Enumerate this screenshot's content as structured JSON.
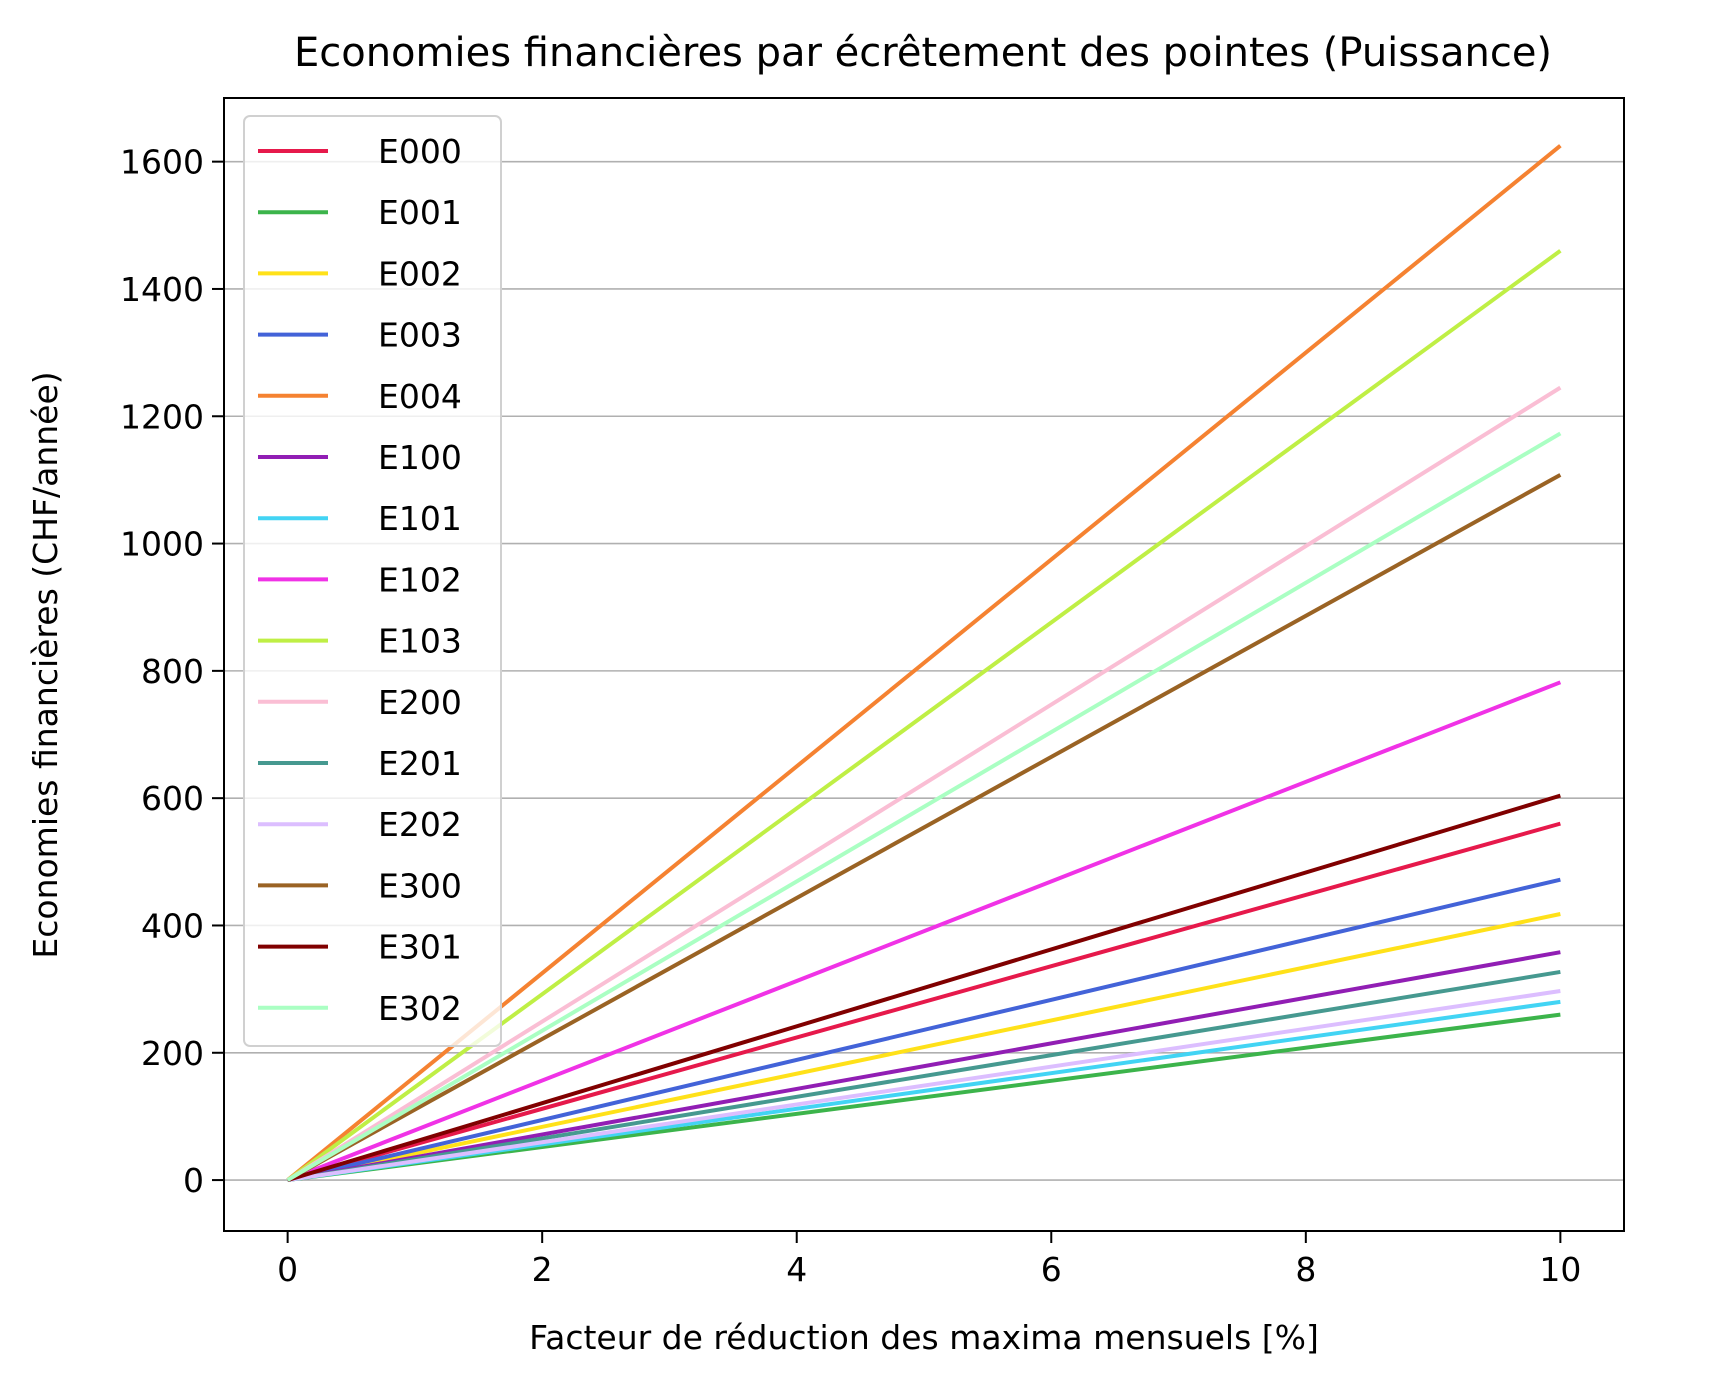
{
  "chart_data": {
    "type": "line",
    "title": "Economies financières par écrêtement des pointes (Puissance)",
    "xlabel": "Facteur de réduction des maxima mensuels [%]",
    "ylabel": "Economies financières (CHF/année)",
    "xlim": [
      -0.5,
      10.5
    ],
    "ylim": [
      -80,
      1700
    ],
    "xticks": [
      0,
      2,
      4,
      6,
      8,
      10
    ],
    "xtick_labels": [
      "0",
      "2",
      "4",
      "6",
      "8",
      "10"
    ],
    "yticks": [
      0,
      200,
      400,
      600,
      800,
      1000,
      1200,
      1400,
      1600
    ],
    "ytick_labels": [
      "0",
      "200",
      "400",
      "600",
      "800",
      "1000",
      "1200",
      "1400",
      "1600"
    ],
    "grid": "y-axis major lines",
    "legend_position": "top-left",
    "x": [
      0,
      10
    ],
    "series": [
      {
        "name": "E000",
        "color": "#e6194b",
        "values": [
          0,
          560
        ]
      },
      {
        "name": "E001",
        "color": "#3cb44b",
        "values": [
          0,
          260
        ]
      },
      {
        "name": "E002",
        "color": "#ffe119",
        "values": [
          0,
          418
        ]
      },
      {
        "name": "E003",
        "color": "#4363d8",
        "values": [
          0,
          472
        ]
      },
      {
        "name": "E004",
        "color": "#f58231",
        "values": [
          0,
          1625
        ]
      },
      {
        "name": "E100",
        "color": "#911eb4",
        "values": [
          0,
          358
        ]
      },
      {
        "name": "E101",
        "color": "#42d4f4",
        "values": [
          0,
          280
        ]
      },
      {
        "name": "E102",
        "color": "#f032e6",
        "values": [
          0,
          782
        ]
      },
      {
        "name": "E103",
        "color": "#bfef45",
        "values": [
          0,
          1460
        ]
      },
      {
        "name": "E200",
        "color": "#fabed4",
        "values": [
          0,
          1245
        ]
      },
      {
        "name": "E201",
        "color": "#469990",
        "values": [
          0,
          327
        ]
      },
      {
        "name": "E202",
        "color": "#dcbeff",
        "values": [
          0,
          297
        ]
      },
      {
        "name": "E300",
        "color": "#9a6324",
        "values": [
          0,
          1108
        ]
      },
      {
        "name": "E301",
        "color": "#800000",
        "values": [
          0,
          604
        ]
      },
      {
        "name": "E302",
        "color": "#aaffc3",
        "values": [
          0,
          1173
        ]
      }
    ]
  }
}
